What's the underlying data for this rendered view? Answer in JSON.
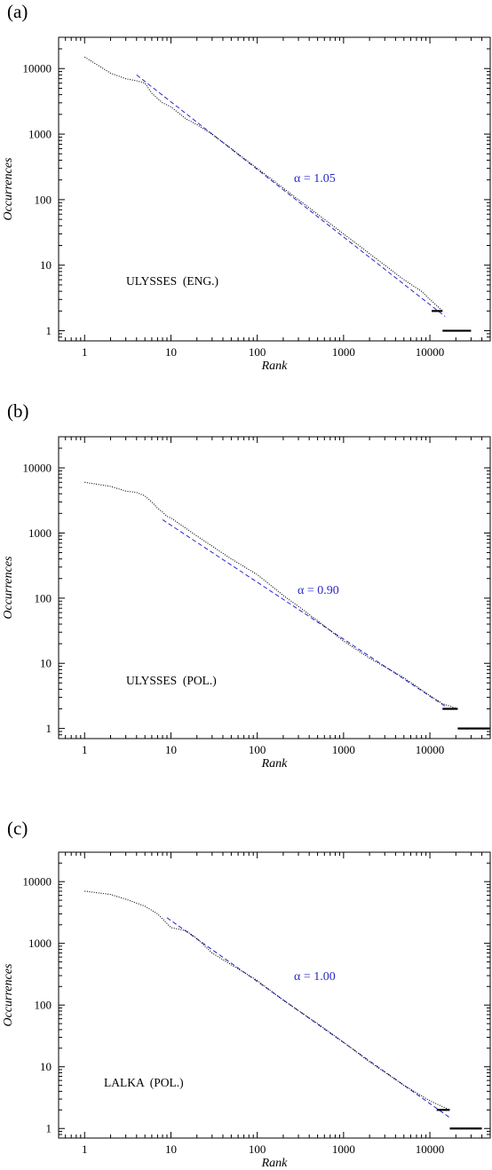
{
  "chart_data": [
    {
      "type": "line",
      "panel_label": "(a)",
      "corpus_label": "ULYSSES  (ENG.)",
      "fit_label": "α = 1.05",
      "xlabel": "Rank",
      "ylabel": "Occurrences",
      "xscale": "log",
      "yscale": "log",
      "xlim": [
        0.5,
        50000
      ],
      "ylim": [
        0.7,
        30000
      ],
      "xticks": [
        "1",
        "10",
        "100",
        "1000",
        "10000"
      ],
      "yticks": [
        "1",
        "10",
        "100",
        "1000",
        "10000"
      ],
      "fit": {
        "alpha": 1.05,
        "x": [
          4,
          15000
        ],
        "y": [
          8000,
          1.65
        ]
      },
      "series": [
        {
          "x": [
            1,
            2,
            3,
            4,
            5,
            6,
            7,
            8,
            10,
            15,
            20,
            30,
            50,
            100,
            200,
            300,
            500,
            1000,
            2000,
            3000,
            5000,
            8000,
            10000,
            14000
          ],
          "y": [
            15000,
            8500,
            7000,
            6500,
            6000,
            4200,
            3500,
            3000,
            2600,
            1700,
            1400,
            1000,
            600,
            300,
            150,
            100,
            60,
            30,
            15,
            10,
            6,
            4,
            3,
            2
          ]
        }
      ],
      "plateaus": [
        {
          "y": 2,
          "x": [
            10500,
            14000
          ]
        },
        {
          "y": 1,
          "x": [
            14000,
            30000
          ]
        }
      ]
    },
    {
      "type": "line",
      "panel_label": "(b)",
      "corpus_label": "ULYSSES  (POL.)",
      "fit_label": "α = 0.90",
      "xlabel": "Rank",
      "ylabel": "Occurrences",
      "xscale": "log",
      "yscale": "log",
      "xlim": [
        0.5,
        50000
      ],
      "ylim": [
        0.7,
        30000
      ],
      "xticks": [
        "1",
        "10",
        "100",
        "1000",
        "10000"
      ],
      "yticks": [
        "1",
        "10",
        "100",
        "1000",
        "10000"
      ],
      "fit": {
        "alpha": 0.9,
        "x": [
          8,
          15000
        ],
        "y": [
          1600,
          2.2
        ]
      },
      "series": [
        {
          "x": [
            1,
            2,
            3,
            4,
            5,
            6,
            7,
            8,
            9,
            10,
            20,
            50,
            100,
            200,
            300,
            500,
            1000,
            2000,
            5000,
            10000,
            14000,
            21000
          ],
          "y": [
            6000,
            5200,
            4400,
            4200,
            3700,
            3000,
            2400,
            2100,
            1800,
            1700,
            900,
            400,
            230,
            110,
            75,
            45,
            22,
            12,
            6,
            3.2,
            2.4,
            2
          ]
        }
      ],
      "plateaus": [
        {
          "y": 2,
          "x": [
            14000,
            21000
          ]
        },
        {
          "y": 1,
          "x": [
            21000,
            50000
          ]
        }
      ]
    },
    {
      "type": "line",
      "panel_label": "(c)",
      "corpus_label": "LALKA  (POL.)",
      "fit_label": "α = 1.00",
      "xlabel": "Rank",
      "ylabel": "Occurrences",
      "xscale": "log",
      "yscale": "log",
      "xlim": [
        0.5,
        50000
      ],
      "ylim": [
        0.7,
        30000
      ],
      "xticks": [
        "1",
        "10",
        "100",
        "1000",
        "10000"
      ],
      "yticks": [
        "1",
        "10",
        "100",
        "1000",
        "10000"
      ],
      "fit": {
        "alpha": 1.0,
        "x": [
          9,
          17000
        ],
        "y": [
          2600,
          1.5
        ]
      },
      "series": [
        {
          "x": [
            1,
            2,
            3,
            5,
            7,
            8,
            10,
            15,
            20,
            30,
            50,
            100,
            200,
            500,
            1000,
            2000,
            5000,
            10000,
            17000
          ],
          "y": [
            7000,
            6200,
            5200,
            4000,
            3000,
            2500,
            1800,
            1600,
            1200,
            700,
            450,
            250,
            120,
            50,
            25,
            12,
            5,
            2.8,
            2
          ]
        }
      ],
      "plateaus": [
        {
          "y": 2,
          "x": [
            12000,
            17000
          ]
        },
        {
          "y": 1,
          "x": [
            17000,
            40000
          ]
        }
      ]
    }
  ]
}
